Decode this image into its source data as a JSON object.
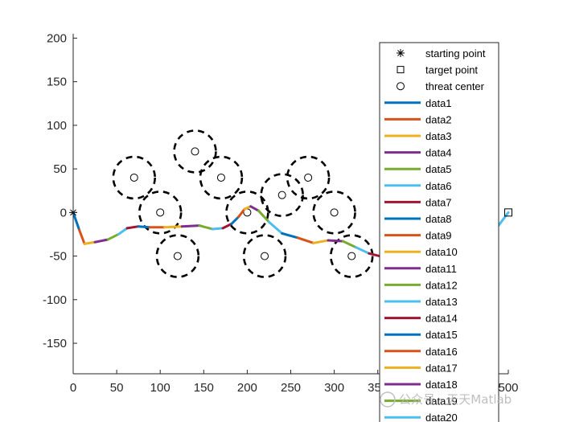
{
  "chart_data": {
    "type": "line",
    "title": "",
    "xlabel": "",
    "ylabel": "",
    "xlim": [
      0,
      500
    ],
    "ylim": [
      -185,
      205
    ],
    "xticks": [
      0,
      50,
      100,
      150,
      200,
      250,
      300,
      350,
      400,
      450,
      500
    ],
    "yticks": [
      -150,
      -100,
      -50,
      0,
      50,
      100,
      150,
      200
    ],
    "xtick_labels": [
      "0",
      "50",
      "100",
      "150",
      "200",
      "250",
      "300",
      "350",
      "400",
      "450",
      "500"
    ],
    "ytick_labels": [
      "-150",
      "-100",
      "-50",
      "0",
      "50",
      "100",
      "150",
      "200"
    ],
    "grid": false,
    "legend_position": "top-right",
    "starting_point": {
      "label": "starting point",
      "marker": "asterisk",
      "x": 0,
      "y": 0
    },
    "target_point": {
      "label": "target point",
      "marker": "square",
      "x": 500,
      "y": 0
    },
    "threat_centers": {
      "label": "threat center",
      "marker": "circle",
      "radius": 24,
      "centers": [
        {
          "x": 70,
          "y": 40
        },
        {
          "x": 100,
          "y": 0
        },
        {
          "x": 120,
          "y": -50
        },
        {
          "x": 140,
          "y": 70
        },
        {
          "x": 170,
          "y": 40
        },
        {
          "x": 200,
          "y": 0
        },
        {
          "x": 220,
          "y": -50
        },
        {
          "x": 240,
          "y": 20
        },
        {
          "x": 270,
          "y": 40
        },
        {
          "x": 300,
          "y": 0
        },
        {
          "x": 320,
          "y": -50
        }
      ]
    },
    "path": {
      "x": [
        0,
        7,
        13,
        25,
        40,
        52,
        62,
        75,
        88,
        105,
        125,
        145,
        160,
        172,
        182,
        190,
        197,
        204,
        213,
        225,
        240,
        258,
        276,
        293,
        310,
        325,
        340,
        352
      ],
      "y": [
        0,
        -20,
        -36,
        -34,
        -31,
        -25,
        -18,
        -16,
        -17,
        -17,
        -16,
        -15,
        -19,
        -18,
        -13,
        -5,
        4,
        7,
        2,
        -11,
        -24,
        -29,
        -35,
        -32,
        -33,
        -40,
        -47,
        -50
      ]
    },
    "path_tail": {
      "x": [
        488,
        500
      ],
      "y": [
        -16,
        0
      ]
    },
    "series": [
      {
        "name": "data1",
        "color": "#0072BD"
      },
      {
        "name": "data2",
        "color": "#D95319"
      },
      {
        "name": "data3",
        "color": "#EDB120"
      },
      {
        "name": "data4",
        "color": "#7E2F8E"
      },
      {
        "name": "data5",
        "color": "#77AC30"
      },
      {
        "name": "data6",
        "color": "#4DBEEE"
      },
      {
        "name": "data7",
        "color": "#A2142F"
      },
      {
        "name": "data8",
        "color": "#0072BD"
      },
      {
        "name": "data9",
        "color": "#D95319"
      },
      {
        "name": "data10",
        "color": "#EDB120"
      },
      {
        "name": "data11",
        "color": "#7E2F8E"
      },
      {
        "name": "data12",
        "color": "#77AC30"
      },
      {
        "name": "data13",
        "color": "#4DBEEE"
      },
      {
        "name": "data14",
        "color": "#A2142F"
      },
      {
        "name": "data15",
        "color": "#0072BD"
      },
      {
        "name": "data16",
        "color": "#D95319"
      },
      {
        "name": "data17",
        "color": "#EDB120"
      },
      {
        "name": "data18",
        "color": "#7E2F8E"
      },
      {
        "name": "data19",
        "color": "#77AC30"
      },
      {
        "name": "data20",
        "color": "#4DBEEE"
      }
    ]
  },
  "watermark": {
    "text": "公众号 · 天天Matlab"
  }
}
